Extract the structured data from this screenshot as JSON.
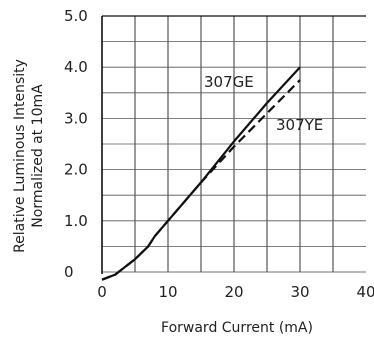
{
  "chart_data": {
    "type": "line",
    "xlabel": "Forward Current (mA)",
    "ylabel_lines": [
      "Relative Luminous Intensity",
      "Normalized at 10mA"
    ],
    "xlim": [
      0,
      40
    ],
    "ylim": [
      0,
      5.0
    ],
    "x_ticks": [
      0,
      10,
      20,
      30,
      40
    ],
    "x_tick_labels": [
      "0",
      "10",
      "20",
      "30",
      "40"
    ],
    "y_ticks": [
      0,
      1.0,
      2.0,
      3.0,
      4.0,
      5.0
    ],
    "y_tick_labels": [
      "0",
      "1.0",
      "2.0",
      "3.0",
      "4.0",
      "5.0"
    ],
    "grid": true,
    "series": [
      {
        "name": "307GE",
        "style": "solid",
        "color": "#111111",
        "x": [
          0,
          2,
          5,
          7,
          8,
          10,
          15,
          20,
          25,
          30
        ],
        "y": [
          -0.15,
          -0.05,
          0.25,
          0.5,
          0.7,
          1.0,
          1.75,
          2.55,
          3.3,
          4.0
        ]
      },
      {
        "name": "307YE",
        "style": "dashed",
        "color": "#111111",
        "x": [
          0,
          2,
          5,
          7,
          8,
          10,
          15,
          20,
          25,
          30
        ],
        "y": [
          -0.15,
          -0.05,
          0.25,
          0.5,
          0.7,
          1.0,
          1.75,
          2.45,
          3.1,
          3.75
        ]
      }
    ]
  }
}
